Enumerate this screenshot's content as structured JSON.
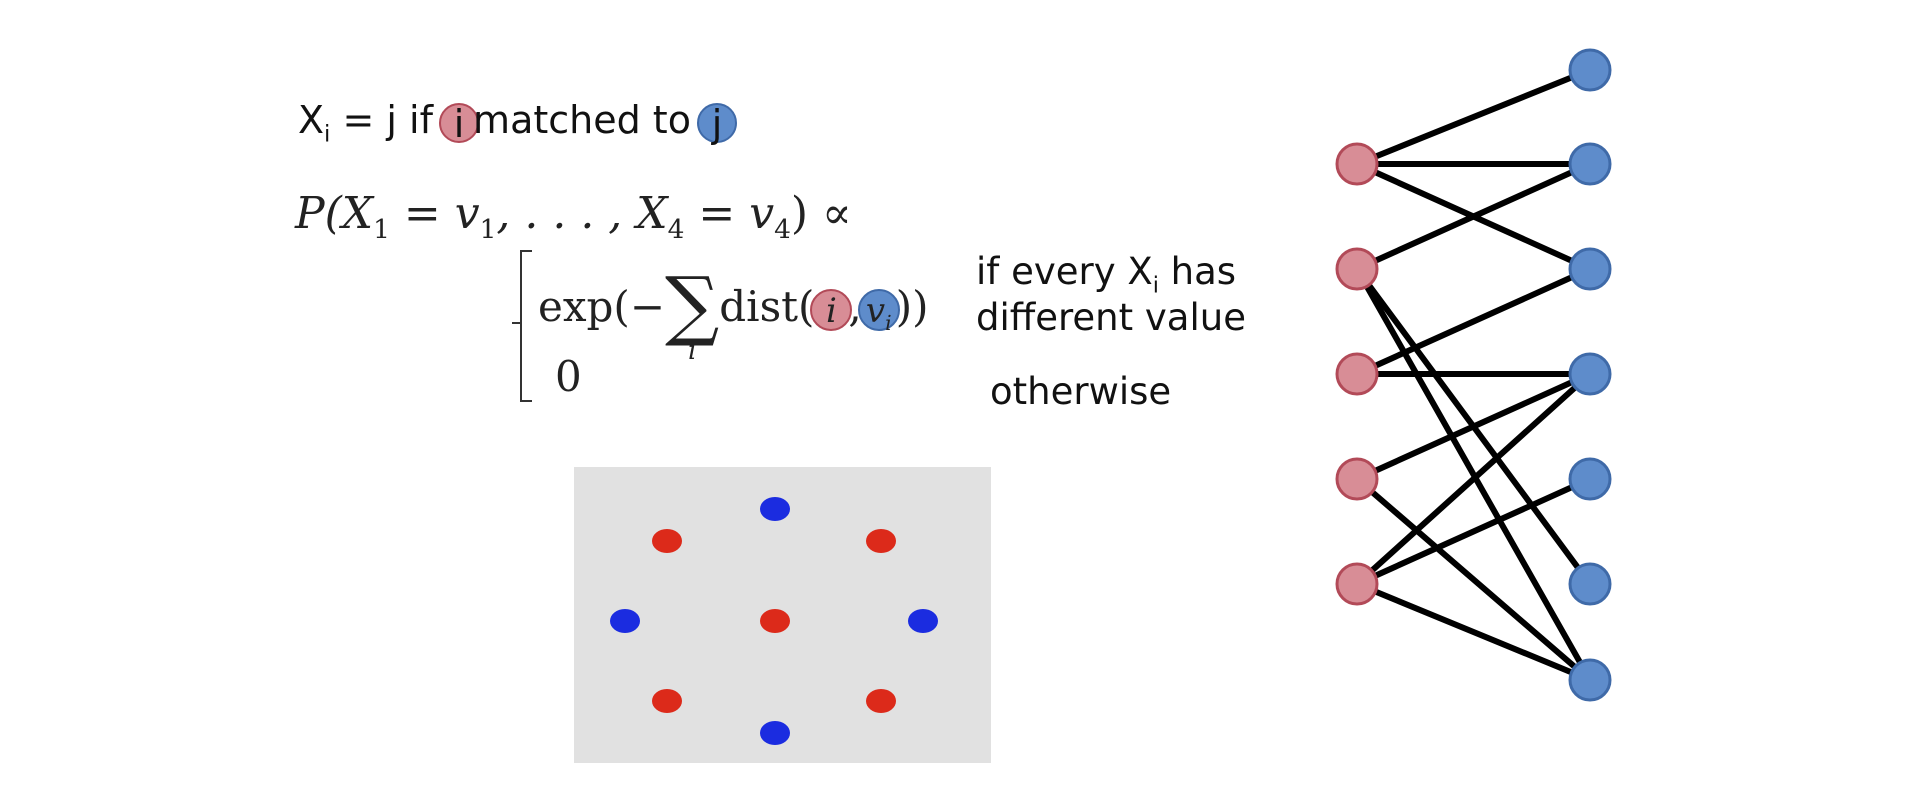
{
  "definition": {
    "prefix": "X",
    "sub": "i",
    "middle": " = j if ",
    "i_chip": "i",
    "rest": "matched to ",
    "j_chip": "j"
  },
  "formula": {
    "lhs": "P(X",
    "lhs_sub1": "1",
    "lhs_mid": " = v",
    "lhs_sub2": "1",
    "lhs_dots": ", . . . , X",
    "lhs_sub3": "4",
    "lhs_eq": " = v",
    "lhs_sub4": "4",
    "lhs_end": ") ∝",
    "case1_exp": "exp(−",
    "case1_sigma": "∑",
    "case1_index": "i",
    "case1_dist": "dist(",
    "case1_i": "i",
    "case1_comma": ",",
    "case1_v": "v",
    "case1_vsub": "i",
    "case1_close": "))",
    "case2_value": "0"
  },
  "conditions": {
    "line1_prefix": "if every X",
    "line1_sub": "i",
    "line1_suffix": " has",
    "line2": "different value",
    "otherwise": "otherwise"
  },
  "scatter_panel": {
    "red_dots": 5,
    "blue_dots": 4
  },
  "bipartite_graph": {
    "left_nodes": 5,
    "right_nodes": 7,
    "edges": [
      [
        0,
        0
      ],
      [
        0,
        1
      ],
      [
        0,
        2
      ],
      [
        1,
        1
      ],
      [
        1,
        5
      ],
      [
        1,
        6
      ],
      [
        2,
        2
      ],
      [
        2,
        3
      ],
      [
        3,
        3
      ],
      [
        3,
        6
      ],
      [
        4,
        3
      ],
      [
        4,
        4
      ],
      [
        4,
        6
      ]
    ],
    "left_color": "#d88d96",
    "right_color": "#5e8ccb"
  }
}
